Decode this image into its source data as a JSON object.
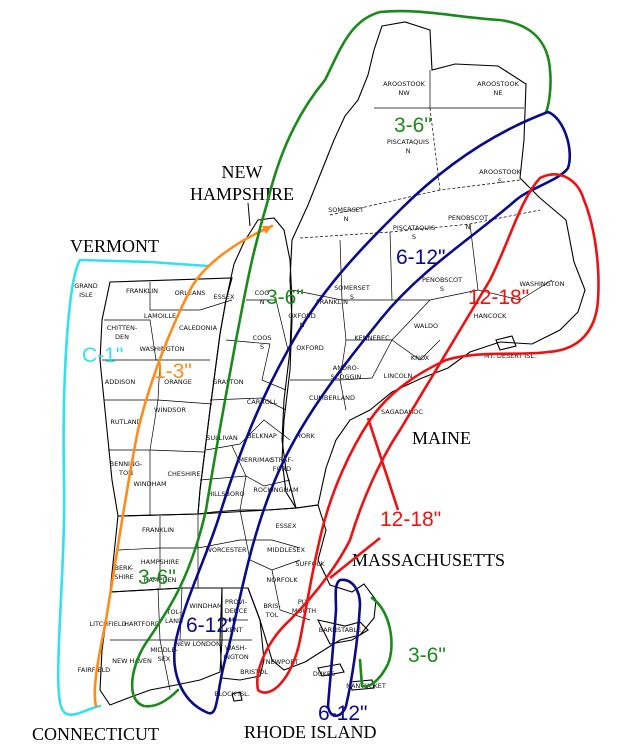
{
  "colors": {
    "cyan": "#33e0f0",
    "orange": "#ff8c1a",
    "green": "#1a8a1a",
    "navy": "#0a0a8a",
    "red": "#ee1111"
  },
  "states": {
    "new_hampshire": [
      "NEW",
      "HAMPSHIRE"
    ],
    "vermont": "VERMONT",
    "maine": "MAINE",
    "massachusetts": "MASSACHUSETTS",
    "connecticut": "CONNECTICUT",
    "rhode_island": "RHODE ISLAND"
  },
  "counties": {
    "aroostook_nw": [
      "AROOSTOOK",
      "NW"
    ],
    "aroostook_ne": [
      "AROOSTOOK",
      "NE"
    ],
    "aroostook_s": [
      "AROOSTOOK",
      "S"
    ],
    "piscataquis_n": [
      "PISCATAQUIS",
      "N"
    ],
    "piscataquis_s": [
      "PISCATAQUIS",
      "S"
    ],
    "somerset_n": [
      "SOMERSET",
      "N"
    ],
    "somerset_s": [
      "SOMERSET",
      "S"
    ],
    "penobscot_n": [
      "PENOBSCOT",
      "N"
    ],
    "penobscot_s": [
      "PENOBSCOT",
      "S"
    ],
    "washington_me": "WASHINGTON",
    "hancock": "HANCOCK",
    "mt_desert": "MT. DESERT ISL.",
    "waldo": "WALDO",
    "knox": "KNOX",
    "lincoln": "LINCOLN",
    "kennebec": "KENNEBEC",
    "franklin_me": "FRANKLIN",
    "oxford_n": [
      "OXFORD",
      "N"
    ],
    "oxford_s": "OXFORD",
    "androscoggin": [
      "ANDRO-",
      "SCOGGIN"
    ],
    "sagadahoc": "SAGADAHOC",
    "cumberland": "CUMBERLAND",
    "york": "YORK",
    "coos_n": [
      "COO",
      "N"
    ],
    "coos_s": [
      "COOS",
      "S"
    ],
    "grafton": "GRAFTON",
    "carroll": "CARROLL",
    "sullivan": "SULLIVAN",
    "belknap": "BELKNAP",
    "merrimac": "MERRIMAC",
    "strafford": [
      "STRAF-",
      "FORD"
    ],
    "cheshire": "CHESHIRE",
    "hillsboro": "HILLSBORO",
    "rockingham": "ROCKINGHAM",
    "grand_isle": [
      "GRAND",
      "ISLE"
    ],
    "franklin_vt": "FRANKLIN",
    "orleans": "ORLEANS",
    "essex_vt": "ESSEX",
    "lamoille": "LAMOILLE",
    "chittenden": [
      "CHITTEN-",
      "DEN"
    ],
    "caledonia": "CALEDONIA",
    "washington_vt": "WASHINGTON",
    "addison": "ADDISON",
    "orange": "ORANGE",
    "windsor": "WINDSOR",
    "rutland": "RUTLAND",
    "bennington": [
      "BENNING-",
      "TON"
    ],
    "windham_vt": "WINDHAM",
    "franklin_ma": "FRANKLIN",
    "hampshire": "HAMPSHIRE",
    "hampden": "HAMPDEN",
    "berkshire": [
      "BERK-",
      "SHIRE"
    ],
    "worcester": "WORCESTER",
    "middlesex_ma": "MIDDLESEX",
    "essex_ma": "ESSEX",
    "suffolk": "SUFFOLK",
    "norfolk": "NORFOLK",
    "plymouth": [
      "PLY-",
      "MOUTH"
    ],
    "bristol_ma": [
      "BRIS-",
      "TOL"
    ],
    "barnstable": "BARNSTABLE",
    "dukes": "DUKES",
    "nantucket": "NANTUCKET",
    "litchfield": "LITCHFIELD",
    "hartford": "HARTFORD",
    "tolland": [
      "TOL-",
      "LAND"
    ],
    "windham_ct": "WINDHAM",
    "fairfield": "FAIRFIELD",
    "new_haven": "NEW HAVEN",
    "middlesex_ct": [
      "MIDDLE-",
      "SEX"
    ],
    "new_london": "NEW LONDON",
    "providence": [
      "PROVI-",
      "DENCE"
    ],
    "kent": "KENT",
    "washington_ri": [
      "WASH-",
      "INGTON"
    ],
    "bristol_ri": "BRISTOL",
    "newport": "NEWPORT",
    "block_isl": "BLOCK ISL."
  },
  "snow_bands": {
    "cyan": "C-1\"",
    "orange": "1-3\"",
    "green_nh": "3-6\"",
    "green_me": "3-6\"",
    "green_ma": "3-6\"",
    "green_cape": "3-6\"",
    "navy_me": "6-12\"",
    "navy_ct": "6-12\"",
    "navy_south": "6-12\"",
    "red_me": "12-18\"",
    "red_ma": "12-18\""
  }
}
